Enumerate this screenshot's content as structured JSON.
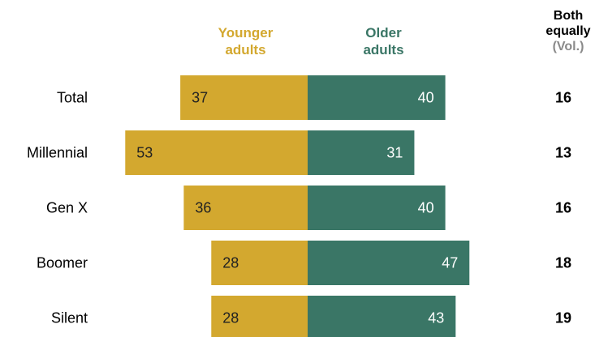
{
  "chart_data": {
    "type": "bar",
    "layout": "diverging",
    "categories": [
      "Total",
      "Millennial",
      "Gen X",
      "Boomer",
      "Silent"
    ],
    "series": [
      {
        "name": "Younger adults",
        "values": [
          37,
          53,
          36,
          28,
          28
        ],
        "color": "#d3a82f",
        "direction": "left"
      },
      {
        "name": "Older adults",
        "values": [
          40,
          31,
          40,
          47,
          43
        ],
        "color": "#3a7666",
        "direction": "right"
      }
    ],
    "extra_column": {
      "name": "Both equally (Vol.)",
      "values": [
        16,
        13,
        16,
        18,
        19
      ]
    },
    "headers": {
      "younger_line1": "Younger",
      "younger_line2": "adults",
      "older_line1": "Older",
      "older_line2": "adults",
      "both_line1": "Both",
      "both_line2": "equally",
      "both_line3": "(Vol.)"
    },
    "colors": {
      "younger": "#d3a82f",
      "older": "#3a7666",
      "vol": "#8a8a8a"
    }
  }
}
